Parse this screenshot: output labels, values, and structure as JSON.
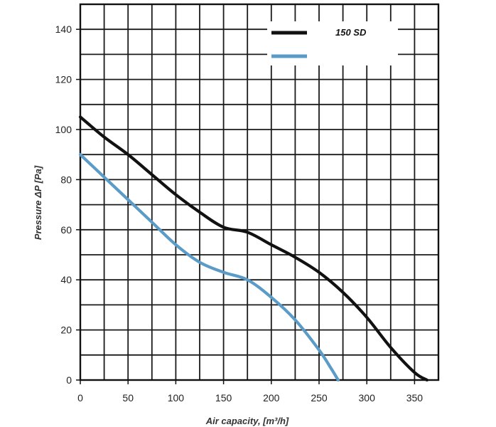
{
  "chart_data": {
    "type": "line",
    "xlabel": "Air capacity, [m³/h]",
    "ylabel": "Pressure ΔP [Pa]",
    "xlim": [
      0,
      375
    ],
    "ylim": [
      0,
      150
    ],
    "x_ticks": [
      "0",
      "50",
      "100",
      "150",
      "200",
      "250",
      "300",
      "350"
    ],
    "y_ticks": [
      "0",
      "20",
      "40",
      "60",
      "80",
      "100",
      "120",
      "140"
    ],
    "grid": true,
    "legend_position": "top-right",
    "series": [
      {
        "name": "150 SD",
        "color": "#111111",
        "points": [
          [
            0,
            105
          ],
          [
            25,
            97
          ],
          [
            50,
            90
          ],
          [
            75,
            82
          ],
          [
            100,
            74
          ],
          [
            125,
            67
          ],
          [
            150,
            61
          ],
          [
            175,
            59
          ],
          [
            200,
            54
          ],
          [
            225,
            49
          ],
          [
            250,
            43
          ],
          [
            275,
            35
          ],
          [
            300,
            25
          ],
          [
            325,
            13
          ],
          [
            350,
            3
          ],
          [
            363,
            0
          ]
        ]
      },
      {
        "name": "",
        "color": "#5b9bc8",
        "points": [
          [
            0,
            90
          ],
          [
            25,
            81
          ],
          [
            50,
            72
          ],
          [
            75,
            63
          ],
          [
            100,
            54
          ],
          [
            125,
            47
          ],
          [
            150,
            43
          ],
          [
            175,
            40
          ],
          [
            200,
            33
          ],
          [
            225,
            24
          ],
          [
            250,
            12
          ],
          [
            262,
            5
          ],
          [
            270,
            0
          ]
        ]
      }
    ]
  }
}
